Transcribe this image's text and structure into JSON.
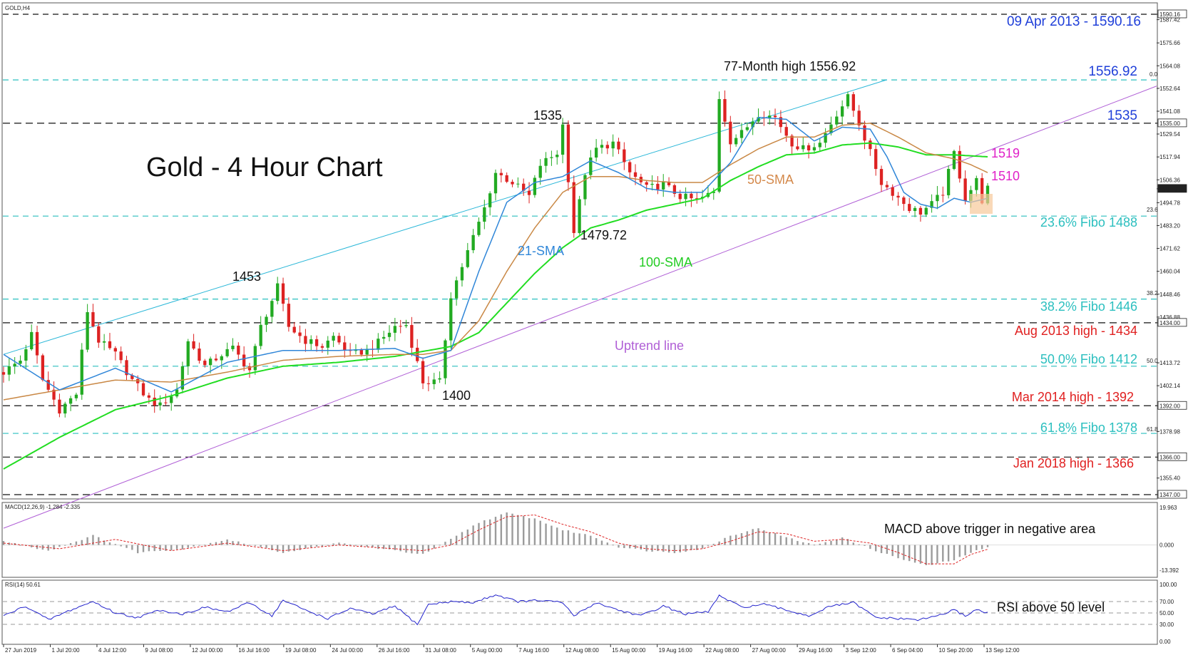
{
  "chart_data": [
    {
      "type": "candlestick",
      "symbol_label": "GOLD,H4",
      "title": "Gold - 4 Hour Chart",
      "ylim": [
        1347,
        1590.16
      ],
      "price_ticks": [
        "1590.16",
        "1587.42",
        "1575.66",
        "1564.08",
        "1552.64",
        "1541.08",
        "1535.00",
        "1529.54",
        "1517.94",
        "1506.36",
        "1501.82",
        "1494.78",
        "1483.20",
        "1471.62",
        "1460.04",
        "1448.46",
        "1436.88",
        "1434.00",
        "1413.72",
        "1402.14",
        "1392.00",
        "1378.98",
        "1366.00",
        "1355.40",
        "1347.00"
      ],
      "x_ticks": [
        "27 Jun 2019",
        "1 Jul 20:00",
        "4 Jul 12:00",
        "9 Jul 08:00",
        "12 Jul 00:00",
        "16 Jul 16:00",
        "19 Jul 08:00",
        "24 Jul 00:00",
        "26 Jul 16:00",
        "31 Jul 08:00",
        "5 Aug 00:00",
        "7 Aug 16:00",
        "12 Aug 08:00",
        "15 Aug 00:00",
        "19 Aug 16:00",
        "22 Aug 08:00",
        "27 Aug 00:00",
        "29 Aug 16:00",
        "3 Sep 12:00",
        "6 Sep 04:00",
        "10 Sep 20:00",
        "13 Sep 12:00"
      ],
      "current_price": 1501.82,
      "price_path": [
        [
          0,
          1409
        ],
        [
          3,
          1415
        ],
        [
          5,
          1428
        ],
        [
          7,
          1405
        ],
        [
          10,
          1390
        ],
        [
          13,
          1398
        ],
        [
          15,
          1440
        ],
        [
          17,
          1425
        ],
        [
          20,
          1418
        ],
        [
          23,
          1405
        ],
        [
          26,
          1395
        ],
        [
          28,
          1392
        ],
        [
          31,
          1400
        ],
        [
          33,
          1425
        ],
        [
          36,
          1412
        ],
        [
          39,
          1418
        ],
        [
          41,
          1421
        ],
        [
          44,
          1410
        ],
        [
          46,
          1432
        ],
        [
          49,
          1452
        ],
        [
          51,
          1432
        ],
        [
          54,
          1425
        ],
        [
          57,
          1422
        ],
        [
          59,
          1427
        ],
        [
          62,
          1418
        ],
        [
          65,
          1420
        ],
        [
          67,
          1424
        ],
        [
          70,
          1432
        ],
        [
          72,
          1433
        ],
        [
          75,
          1404
        ],
        [
          78,
          1404
        ],
        [
          80,
          1448
        ],
        [
          83,
          1470
        ],
        [
          86,
          1492
        ],
        [
          88,
          1510
        ],
        [
          91,
          1505
        ],
        [
          94,
          1498
        ],
        [
          96,
          1514
        ],
        [
          99,
          1520
        ],
        [
          100,
          1534
        ],
        [
          102,
          1480
        ],
        [
          104,
          1510
        ],
        [
          106,
          1522
        ],
        [
          109,
          1525
        ],
        [
          112,
          1510
        ],
        [
          115,
          1502
        ],
        [
          118,
          1504
        ],
        [
          121,
          1498
        ],
        [
          124,
          1496
        ],
        [
          127,
          1500
        ],
        [
          128,
          1548
        ],
        [
          130,
          1526
        ],
        [
          132,
          1530
        ],
        [
          135,
          1540
        ],
        [
          138,
          1538
        ],
        [
          141,
          1525
        ],
        [
          143,
          1522
        ],
        [
          146,
          1525
        ],
        [
          149,
          1540
        ],
        [
          151,
          1548
        ],
        [
          153,
          1535
        ],
        [
          155,
          1520
        ],
        [
          157,
          1505
        ],
        [
          159,
          1500
        ],
        [
          162,
          1492
        ],
        [
          164,
          1490
        ],
        [
          166,
          1494
        ],
        [
          168,
          1500
        ],
        [
          170,
          1520
        ],
        [
          172,
          1497
        ],
        [
          174,
          1506
        ],
        [
          175,
          1496
        ],
        [
          176,
          1502
        ]
      ],
      "price_path_note": "",
      "sma_21_path": [
        [
          0,
          1418
        ],
        [
          10,
          1400
        ],
        [
          20,
          1411
        ],
        [
          30,
          1399
        ],
        [
          40,
          1414
        ],
        [
          50,
          1420
        ],
        [
          60,
          1420
        ],
        [
          70,
          1421
        ],
        [
          75,
          1416
        ],
        [
          80,
          1420
        ],
        [
          85,
          1460
        ],
        [
          90,
          1495
        ],
        [
          95,
          1505
        ],
        [
          100,
          1508
        ],
        [
          105,
          1516
        ],
        [
          110,
          1510
        ],
        [
          115,
          1502
        ],
        [
          120,
          1500
        ],
        [
          125,
          1500
        ],
        [
          130,
          1515
        ],
        [
          135,
          1538
        ],
        [
          140,
          1537
        ],
        [
          145,
          1526
        ],
        [
          150,
          1533
        ],
        [
          155,
          1532
        ],
        [
          158,
          1518
        ],
        [
          161,
          1500
        ],
        [
          164,
          1494
        ],
        [
          167,
          1492
        ],
        [
          170,
          1497
        ],
        [
          173,
          1495
        ],
        [
          176,
          1497
        ]
      ],
      "sma_50_path": [
        [
          0,
          1395
        ],
        [
          10,
          1400
        ],
        [
          20,
          1405
        ],
        [
          30,
          1404
        ],
        [
          40,
          1409
        ],
        [
          50,
          1415
        ],
        [
          60,
          1417
        ],
        [
          70,
          1418
        ],
        [
          75,
          1418
        ],
        [
          80,
          1420
        ],
        [
          85,
          1435
        ],
        [
          90,
          1460
        ],
        [
          95,
          1482
        ],
        [
          100,
          1500
        ],
        [
          105,
          1508
        ],
        [
          110,
          1508
        ],
        [
          115,
          1506
        ],
        [
          120,
          1505
        ],
        [
          125,
          1505
        ],
        [
          130,
          1514
        ],
        [
          135,
          1522
        ],
        [
          140,
          1528
        ],
        [
          145,
          1528
        ],
        [
          150,
          1534
        ],
        [
          155,
          1535
        ],
        [
          160,
          1528
        ],
        [
          165,
          1520
        ],
        [
          170,
          1517
        ],
        [
          173,
          1514
        ],
        [
          176,
          1510
        ]
      ],
      "sma_100_path": [
        [
          0,
          1360
        ],
        [
          10,
          1376
        ],
        [
          20,
          1390
        ],
        [
          30,
          1397
        ],
        [
          40,
          1406
        ],
        [
          50,
          1412
        ],
        [
          60,
          1414
        ],
        [
          70,
          1417
        ],
        [
          80,
          1422
        ],
        [
          85,
          1429
        ],
        [
          90,
          1444
        ],
        [
          95,
          1459
        ],
        [
          100,
          1472
        ],
        [
          105,
          1482
        ],
        [
          110,
          1486
        ],
        [
          115,
          1491
        ],
        [
          120,
          1494
        ],
        [
          125,
          1497
        ],
        [
          130,
          1506
        ],
        [
          135,
          1513
        ],
        [
          140,
          1519
        ],
        [
          145,
          1520
        ],
        [
          150,
          1524
        ],
        [
          155,
          1525
        ],
        [
          160,
          1523
        ],
        [
          165,
          1519
        ],
        [
          170,
          1519
        ],
        [
          176,
          1518
        ]
      ],
      "trendlines": [
        {
          "name": "Uptrend line",
          "color": "#b05fd6",
          "from": [
            0,
            1330
          ],
          "to": [
            176,
            1521
          ]
        },
        {
          "name": "",
          "color": "#2ab7d8",
          "from": [
            0,
            1418
          ],
          "to": [
            158,
            1557
          ]
        }
      ],
      "annotations": [
        {
          "text": "77-Month high 1556.92",
          "color": "#111111"
        },
        {
          "text": "1535",
          "color": "#111111"
        },
        {
          "text": "1479.72",
          "color": "#111111"
        },
        {
          "text": "1453",
          "color": "#111111"
        },
        {
          "text": "1400",
          "color": "#111111"
        },
        {
          "text": "21-SMA",
          "color": "#2f86d8"
        },
        {
          "text": "50-SMA",
          "color": "#d4894b"
        },
        {
          "text": "100-SMA",
          "color": "#22cc22"
        },
        {
          "text": "Uptrend line",
          "color": "#b05fd6"
        },
        {
          "text": "1519",
          "color": "#e020c8"
        },
        {
          "text": "1510",
          "color": "#e020c8"
        }
      ],
      "level_labels": [
        {
          "text": "09 Apr 2013 - 1590.16",
          "color": "#1f3fd9"
        },
        {
          "text": "1556.92",
          "color": "#1f3fd9"
        },
        {
          "text": "1535",
          "color": "#1f3fd9"
        },
        {
          "text": "23.6% Fibo 1488",
          "color": "#2bbfbf"
        },
        {
          "text": "38.2% Fibo 1446",
          "color": "#2bbfbf"
        },
        {
          "text": "Aug 2013 high - 1434",
          "color": "#e02020"
        },
        {
          "text": "50.0% Fibo 1412",
          "color": "#2bbfbf"
        },
        {
          "text": "Mar 2014 high - 1392",
          "color": "#e02020"
        },
        {
          "text": "61.8% Fibo 1378",
          "color": "#2bbfbf"
        },
        {
          "text": "Jan 2018 high - 1366",
          "color": "#e02020"
        }
      ],
      "fib_markers": [
        "0.0",
        "23.6",
        "38.2",
        "50.0",
        "61.8"
      ],
      "legend": "none",
      "colors": {
        "bull": "#22aa22",
        "bear": "#dd2222",
        "sma21": "#2f86d8",
        "sma50": "#c98845",
        "sma100": "#22dd22",
        "fib": "#2bbfbf",
        "level": "#111111",
        "highlight_box": "#f6c99a"
      }
    },
    {
      "type": "bar",
      "title": "MACD(12,26,9) -1.284 -2.335",
      "ylim": [
        -13.392,
        19.963
      ],
      "ticks": [
        "19.963",
        "0.000",
        "-13.392"
      ],
      "annotation": "MACD above trigger in negative area",
      "histogram_path": [
        [
          0,
          2
        ],
        [
          8,
          -3
        ],
        [
          16,
          5
        ],
        [
          24,
          -4
        ],
        [
          32,
          -2
        ],
        [
          40,
          3
        ],
        [
          50,
          -4
        ],
        [
          60,
          1
        ],
        [
          70,
          -3
        ],
        [
          75,
          -5
        ],
        [
          80,
          3
        ],
        [
          85,
          12
        ],
        [
          90,
          17
        ],
        [
          95,
          14
        ],
        [
          100,
          8
        ],
        [
          105,
          5
        ],
        [
          110,
          -1
        ],
        [
          115,
          -3
        ],
        [
          120,
          -4
        ],
        [
          125,
          -2
        ],
        [
          130,
          5
        ],
        [
          135,
          9
        ],
        [
          140,
          4
        ],
        [
          145,
          0
        ],
        [
          150,
          4
        ],
        [
          155,
          -2
        ],
        [
          160,
          -7
        ],
        [
          165,
          -11
        ],
        [
          170,
          -8
        ],
        [
          173,
          -4
        ],
        [
          176,
          -1.3
        ]
      ],
      "signal_path": [
        [
          0,
          1
        ],
        [
          10,
          -2
        ],
        [
          20,
          3
        ],
        [
          30,
          -3
        ],
        [
          40,
          1
        ],
        [
          50,
          -3
        ],
        [
          60,
          0
        ],
        [
          70,
          -2
        ],
        [
          75,
          -3
        ],
        [
          80,
          0
        ],
        [
          85,
          8
        ],
        [
          90,
          15
        ],
        [
          95,
          16
        ],
        [
          100,
          11
        ],
        [
          105,
          7
        ],
        [
          110,
          1
        ],
        [
          115,
          -2
        ],
        [
          120,
          -3
        ],
        [
          125,
          -2
        ],
        [
          130,
          2
        ],
        [
          135,
          7
        ],
        [
          140,
          6
        ],
        [
          145,
          2
        ],
        [
          150,
          3
        ],
        [
          155,
          1
        ],
        [
          160,
          -4
        ],
        [
          165,
          -10
        ],
        [
          170,
          -10
        ],
        [
          173,
          -5
        ],
        [
          176,
          -2.3
        ]
      ],
      "colors": {
        "hist": "#9b9b9b",
        "signal": "#dd2222"
      }
    },
    {
      "type": "line",
      "title": "RSI(14) 50.61",
      "ylim": [
        0,
        100
      ],
      "ticks": [
        "100.00",
        "70.00",
        "50.00",
        "30.00",
        "0.00"
      ],
      "annotation": "RSI above 50 level",
      "rsi_path": [
        [
          0,
          45
        ],
        [
          4,
          62
        ],
        [
          8,
          38
        ],
        [
          12,
          55
        ],
        [
          16,
          70
        ],
        [
          20,
          50
        ],
        [
          24,
          42
        ],
        [
          28,
          55
        ],
        [
          32,
          48
        ],
        [
          36,
          60
        ],
        [
          40,
          52
        ],
        [
          44,
          68
        ],
        [
          48,
          45
        ],
        [
          50,
          72
        ],
        [
          54,
          55
        ],
        [
          58,
          40
        ],
        [
          62,
          58
        ],
        [
          66,
          48
        ],
        [
          70,
          62
        ],
        [
          74,
          30
        ],
        [
          76,
          65
        ],
        [
          80,
          70
        ],
        [
          84,
          68
        ],
        [
          88,
          82
        ],
        [
          92,
          70
        ],
        [
          96,
          72
        ],
        [
          100,
          68
        ],
        [
          102,
          45
        ],
        [
          106,
          68
        ],
        [
          110,
          55
        ],
        [
          114,
          45
        ],
        [
          118,
          62
        ],
        [
          122,
          48
        ],
        [
          126,
          52
        ],
        [
          128,
          80
        ],
        [
          132,
          60
        ],
        [
          136,
          65
        ],
        [
          140,
          55
        ],
        [
          144,
          45
        ],
        [
          148,
          62
        ],
        [
          152,
          68
        ],
        [
          156,
          42
        ],
        [
          160,
          40
        ],
        [
          164,
          38
        ],
        [
          168,
          48
        ],
        [
          170,
          55
        ],
        [
          172,
          45
        ],
        [
          174,
          56
        ],
        [
          176,
          50.61
        ]
      ],
      "colors": {
        "line": "#2222cc"
      }
    }
  ]
}
